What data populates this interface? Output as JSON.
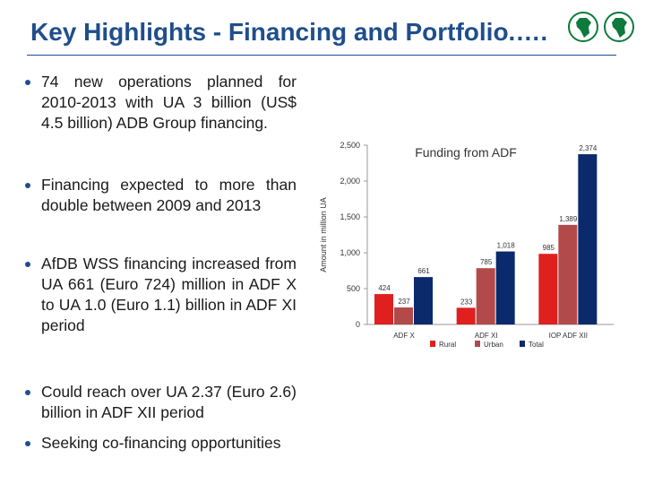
{
  "slide": {
    "title": "Key Highlights - Financing and Portfolio.….",
    "logo_colors": {
      "green": "#0e7a3b",
      "gold": "#d9b24a"
    }
  },
  "bullets": [
    "74 new operations planned for 2010-2013 with UA 3 billion (US$ 4.5 billion) ADB Group financing.",
    "Financing expected to more than double between 2009 and 2013",
    "AfDB WSS financing increased from UA 661 (Euro 724) million in ADF X to UA 1.0 (Euro 1.1) billion in ADF XI period",
    "Could reach over UA 2.37 (Euro 2.6) billion in ADF XII period",
    "Seeking co-financing opportunities"
  ],
  "chart_data": {
    "type": "bar",
    "title": "Funding from ADF",
    "ylabel": "Amount in million UA",
    "xlabel": "",
    "categories": [
      "ADF X",
      "ADF XI",
      "IOP ADF XII"
    ],
    "series": [
      {
        "name": "Rural",
        "color": "#e0201f",
        "values": [
          424,
          233,
          985
        ]
      },
      {
        "name": "Urban",
        "color": "#b24a4a",
        "values": [
          237,
          785,
          1389
        ]
      },
      {
        "name": "Total",
        "color": "#0a2a6b",
        "values": [
          661,
          1018,
          2374
        ]
      }
    ],
    "ylim": [
      0,
      2500
    ],
    "yticks": [
      0,
      500,
      1000,
      1500,
      2000,
      2500
    ],
    "ytick_labels": [
      "0",
      "500",
      "1,000",
      "1,500",
      "2,000",
      "2,500"
    ],
    "data_labels": [
      [
        "424",
        "237",
        "661"
      ],
      [
        "233",
        "785",
        "1,018"
      ],
      [
        "985",
        "1,389",
        "2,374"
      ]
    ],
    "legend_position": "bottom",
    "grid": false
  }
}
